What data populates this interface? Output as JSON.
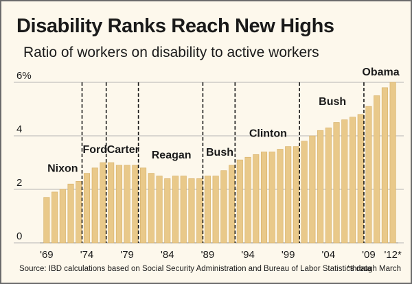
{
  "header": {
    "title": "Disability Ranks Reach New Highs",
    "subtitle": "Ratio of workers on disability to active workers"
  },
  "footer": {
    "source": "Source: IBD calculations based on Social Security Administration and Bureau of Labor Statistics data",
    "footnote": "*through March"
  },
  "colors": {
    "bar": "#e9c98a",
    "bar_edge": "#d6ae65",
    "background": "#fdf8ec",
    "grid": "#b5b5b5"
  },
  "chart_data": {
    "type": "bar",
    "title": "Disability Ranks Reach New Highs",
    "subtitle": "Ratio of workers on disability to active workers",
    "years": [
      1969,
      1970,
      1971,
      1972,
      1973,
      1974,
      1975,
      1976,
      1977,
      1978,
      1979,
      1980,
      1981,
      1982,
      1983,
      1984,
      1985,
      1986,
      1987,
      1988,
      1989,
      1990,
      1991,
      1992,
      1993,
      1994,
      1995,
      1996,
      1997,
      1998,
      1999,
      2000,
      2001,
      2002,
      2003,
      2004,
      2005,
      2006,
      2007,
      2008,
      2009,
      2010,
      2011,
      2012
    ],
    "values": [
      1.7,
      1.9,
      2.0,
      2.2,
      2.3,
      2.6,
      2.8,
      3.0,
      3.0,
      2.9,
      2.9,
      2.9,
      2.8,
      2.6,
      2.5,
      2.4,
      2.5,
      2.5,
      2.4,
      2.4,
      2.5,
      2.5,
      2.7,
      2.9,
      3.1,
      3.2,
      3.3,
      3.4,
      3.4,
      3.5,
      3.6,
      3.6,
      3.8,
      4.0,
      4.2,
      4.3,
      4.5,
      4.6,
      4.7,
      4.8,
      5.1,
      5.5,
      5.8,
      6.0
    ],
    "ylim": [
      0,
      6
    ],
    "y_ticks": [
      {
        "value": 0,
        "label": "0"
      },
      {
        "value": 2,
        "label": "2"
      },
      {
        "value": 4,
        "label": "4"
      },
      {
        "value": 6,
        "label": "6%"
      }
    ],
    "x_tick_labels": [
      {
        "year": 1969,
        "label": "'69"
      },
      {
        "year": 1974,
        "label": "'74"
      },
      {
        "year": 1979,
        "label": "'79"
      },
      {
        "year": 1984,
        "label": "'84"
      },
      {
        "year": 1989,
        "label": "'89"
      },
      {
        "year": 1994,
        "label": "'94"
      },
      {
        "year": 1999,
        "label": "'99"
      },
      {
        "year": 2004,
        "label": "'04"
      },
      {
        "year": 2009,
        "label": "'09"
      },
      {
        "year": 2012,
        "label": "'12*"
      }
    ],
    "administration_dividers": [
      1974,
      1977,
      1981,
      1989,
      1993,
      2001,
      2009
    ],
    "administrations": [
      {
        "label": "Nixon",
        "start": 1969,
        "end": 1973
      },
      {
        "label": "Ford",
        "start": 1974,
        "end": 1976
      },
      {
        "label": "Carter",
        "start": 1977,
        "end": 1980
      },
      {
        "label": "Reagan",
        "start": 1981,
        "end": 1988
      },
      {
        "label": "Bush",
        "start": 1989,
        "end": 1992
      },
      {
        "label": "Clinton",
        "start": 1993,
        "end": 2000
      },
      {
        "label": "Bush",
        "start": 2001,
        "end": 2008
      },
      {
        "label": "Obama",
        "start": 2009,
        "end": 2012
      }
    ],
    "grid": true
  }
}
